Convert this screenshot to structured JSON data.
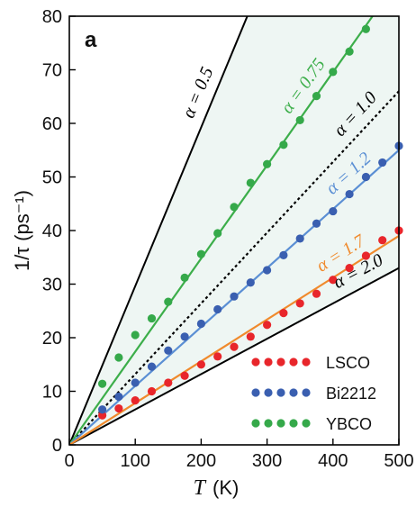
{
  "chart_data": {
    "type": "scatter",
    "panel_label": "a",
    "xlabel_symbol": "T",
    "xlabel_unit": "(K)",
    "ylabel": "1/τ  (ps⁻¹)",
    "xlim": [
      0,
      500
    ],
    "ylim": [
      0,
      80
    ],
    "x_ticks": [
      0,
      100,
      200,
      300,
      400,
      500
    ],
    "y_ticks": [
      0,
      10,
      20,
      30,
      40,
      50,
      60,
      70,
      80
    ],
    "grid": false,
    "legend_position": "bottom-right",
    "colors": {
      "LSCO": "#e8262b",
      "Bi2212": "#3a5fb0",
      "YBCO": "#35a94a",
      "fit_LSCO": "#f08a2c",
      "fit_Bi2212": "#5b8fd4",
      "fit_YBCO": "#3cae4a",
      "boundary": "#000000",
      "shade": "#eef6f3"
    },
    "reference_lines": [
      {
        "label": "α = 0.5",
        "alpha": 0.5,
        "style": "solid",
        "y_at": [
          [
            0,
            0
          ],
          [
            270,
            80
          ]
        ]
      },
      {
        "label": "α = 1.0",
        "alpha": 1.0,
        "style": "dotted",
        "y_at": [
          [
            0,
            0
          ],
          [
            500,
            66
          ]
        ]
      },
      {
        "label": "α = 2.0",
        "alpha": 2.0,
        "style": "solid",
        "y_at": [
          [
            0,
            0
          ],
          [
            500,
            33
          ]
        ]
      }
    ],
    "fit_lines": [
      {
        "series": "YBCO",
        "label": "α = 0.75",
        "alpha": 0.75,
        "y_at": [
          [
            0,
            0
          ],
          [
            460,
            80
          ]
        ]
      },
      {
        "series": "Bi2212",
        "label": "α = 1.2",
        "alpha": 1.2,
        "y_at": [
          [
            0,
            0
          ],
          [
            500,
            55
          ]
        ]
      },
      {
        "series": "LSCO",
        "label": "α = 1.7",
        "alpha": 1.7,
        "y_at": [
          [
            0,
            0
          ],
          [
            500,
            39
          ]
        ]
      }
    ],
    "series": [
      {
        "name": "LSCO",
        "x": [
          50,
          75,
          100,
          125,
          150,
          175,
          200,
          225,
          250,
          275,
          300,
          325,
          350,
          375,
          400,
          425,
          450,
          475,
          500
        ],
        "y": [
          5.5,
          6.8,
          8.3,
          10.0,
          11.6,
          12.9,
          15.0,
          16.5,
          18.3,
          20.2,
          22.4,
          24.6,
          26.4,
          28.2,
          30.8,
          33.0,
          35.3,
          38.2,
          40.0
        ]
      },
      {
        "name": "Bi2212",
        "x": [
          50,
          75,
          100,
          125,
          150,
          175,
          200,
          225,
          250,
          275,
          300,
          325,
          350,
          375,
          400,
          425,
          450,
          475,
          500
        ],
        "y": [
          6.6,
          9.0,
          11.6,
          14.6,
          17.6,
          20.2,
          22.6,
          25.3,
          27.7,
          30.3,
          32.6,
          35.4,
          38.5,
          41.3,
          43.6,
          46.8,
          50.0,
          52.7,
          55.8
        ]
      },
      {
        "name": "YBCO",
        "x": [
          50,
          75,
          100,
          125,
          150,
          175,
          200,
          225,
          250,
          275,
          300,
          325,
          350,
          375,
          400,
          425,
          450
        ],
        "y": [
          11.4,
          16.3,
          20.5,
          23.6,
          26.7,
          31.2,
          35.6,
          39.5,
          44.4,
          48.9,
          52.4,
          56.0,
          60.6,
          65.1,
          69.6,
          73.4,
          77.6
        ]
      }
    ]
  }
}
